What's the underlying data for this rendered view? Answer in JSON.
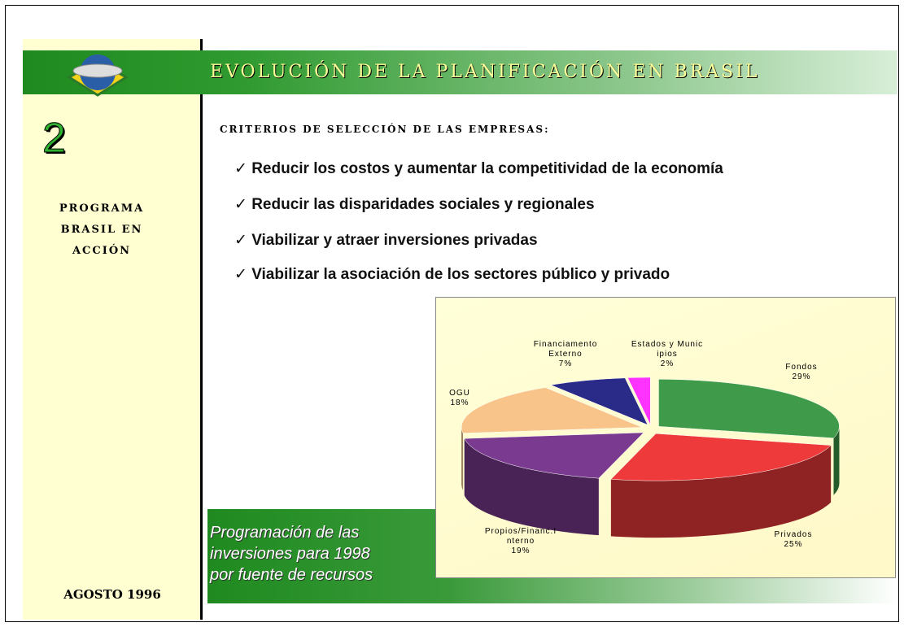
{
  "slide": {
    "title": "EVOLUCIÓN DE LA PLANIFICACIÓN EN BRASIL",
    "number": "2",
    "program": "PROGRAMA BRASIL EN ACCIÓN",
    "date": "AGOSTO 1996",
    "subtitle": "CRITERIOS DE SELECCIÓN DE LAS EMPRESAS:",
    "bullets": [
      "Reducir los costos y aumentar la competitividad de la economía",
      "Reducir las disparidades sociales y regionales",
      "Viabilizar y atraer inversiones privadas",
      "Viabilizar la asociación de los sectores público y privado"
    ],
    "caption": [
      "Programación de las",
      "inversiones para 1998",
      "por fuente de recursos"
    ]
  },
  "chart_data": {
    "type": "pie",
    "categories": [
      "Fondos",
      "Privados",
      "Propios/Financ.Interno",
      "OGU",
      "Financiamento Externo",
      "Estados y Municipios"
    ],
    "values": [
      29,
      25,
      19,
      18,
      7,
      2
    ],
    "value_labels": [
      "29%",
      "25%",
      "19%",
      "18%",
      "7%",
      "2%"
    ],
    "colors": [
      "#3f9a4a",
      "#ee3a3a",
      "#7a3a90",
      "#f8c489",
      "#2a2a88",
      "#ff33ff"
    ]
  }
}
